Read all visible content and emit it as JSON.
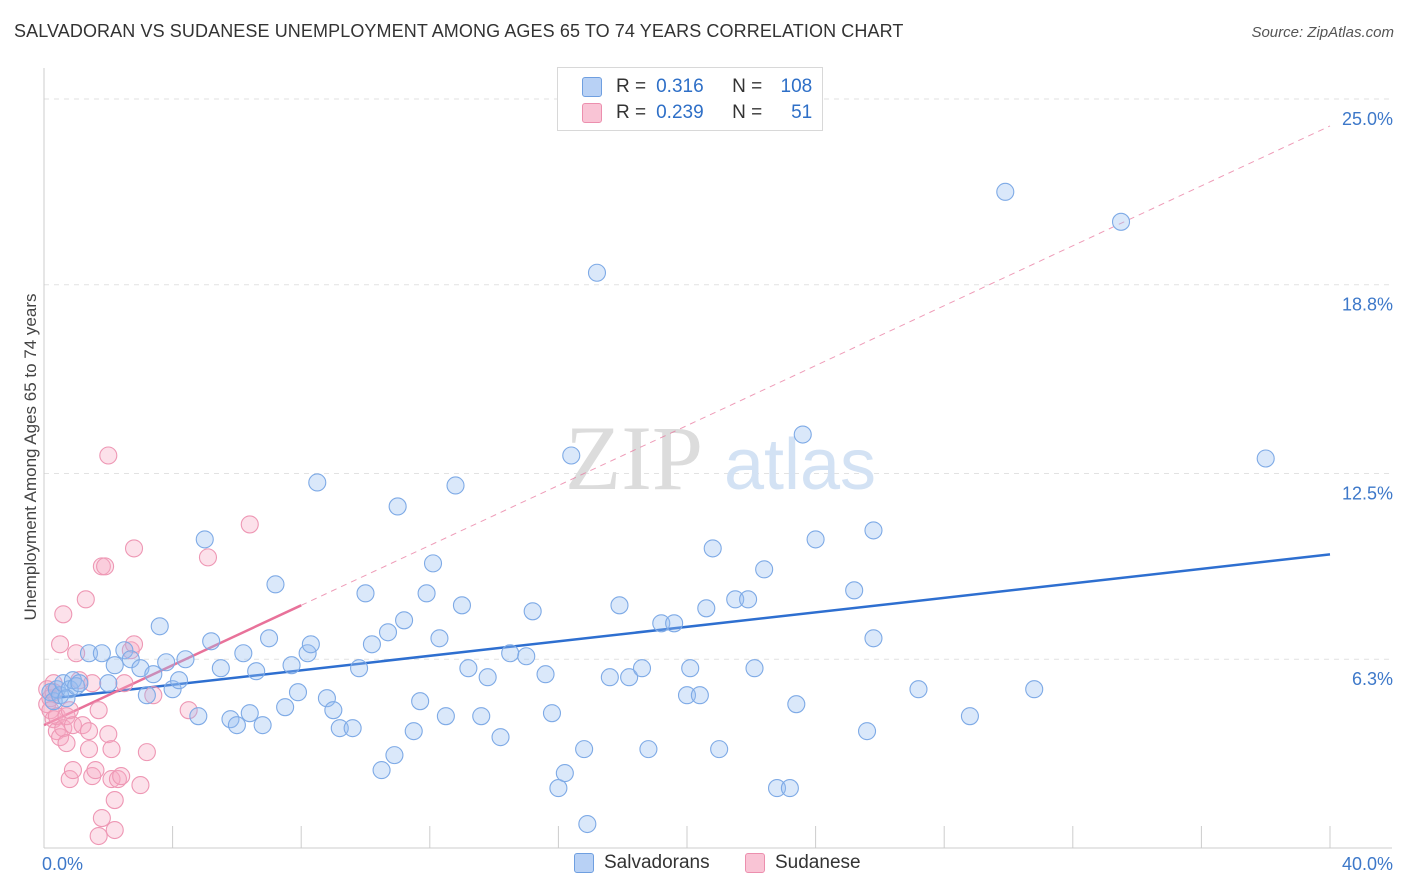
{
  "title": "SALVADORAN VS SUDANESE UNEMPLOYMENT AMONG AGES 65 TO 74 YEARS CORRELATION CHART",
  "source": "Source: ZipAtlas.com",
  "watermark": {
    "zip": "ZIP",
    "atlas": "atlas"
  },
  "legend": {
    "r_label": "R =",
    "n_label": "N =",
    "rows": [
      {
        "r": "0.316",
        "n": "108",
        "swatch_fill": "#b8d1f5",
        "swatch_stroke": "#6f9fe0"
      },
      {
        "r": "0.239",
        "n": "51",
        "swatch_fill": "#f9c4d5",
        "swatch_stroke": "#ec8fae"
      }
    ]
  },
  "series_legend": [
    {
      "name": "Salvadorans",
      "fill": "#b8d1f5",
      "stroke": "#6f9fe0"
    },
    {
      "name": "Sudanese",
      "fill": "#f9c4d5",
      "stroke": "#ec8fae"
    }
  ],
  "chart_data": {
    "type": "scatter",
    "title": "SALVADORAN VS SUDANESE UNEMPLOYMENT AMONG AGES 65 TO 74 YEARS CORRELATION CHART",
    "xlabel": "",
    "ylabel": "Unemployment Among Ages 65 to 74 years",
    "xlim": [
      0,
      40
    ],
    "ylim": [
      0,
      25.7
    ],
    "x_tick_labels": [
      {
        "value": 0,
        "label": "0.0%"
      },
      {
        "value": 40,
        "label": "40.0%"
      }
    ],
    "y_tick_labels": [
      {
        "value": 6.3,
        "label": "6.3%"
      },
      {
        "value": 12.5,
        "label": "12.5%"
      },
      {
        "value": 18.8,
        "label": "18.8%"
      },
      {
        "value": 25.0,
        "label": "25.0%"
      }
    ],
    "x_minor_ticks": [
      0,
      4,
      8,
      12,
      16,
      20,
      24,
      28,
      32,
      36,
      40
    ],
    "grid_y": [
      6.3,
      12.5,
      18.8,
      25.0
    ],
    "colors": {
      "blue_line": "#2e6fd0",
      "pink_line": "#e8729a",
      "tick_text": "#3d78c9",
      "axis": "#cccccc",
      "grid": "#e2e2e2"
    },
    "series": [
      {
        "name": "Salvadorans",
        "color": "#7eaae6",
        "points": [
          [
            0.2,
            5.2
          ],
          [
            0.3,
            4.9
          ],
          [
            0.4,
            5.3
          ],
          [
            0.5,
            5.1
          ],
          [
            0.6,
            5.5
          ],
          [
            0.7,
            5.0
          ],
          [
            0.8,
            5.3
          ],
          [
            0.9,
            5.6
          ],
          [
            1.0,
            5.4
          ],
          [
            1.1,
            5.5
          ],
          [
            1.4,
            6.5
          ],
          [
            1.8,
            6.5
          ],
          [
            2.0,
            5.5
          ],
          [
            2.2,
            6.1
          ],
          [
            2.5,
            6.6
          ],
          [
            2.7,
            6.3
          ],
          [
            3.0,
            6.0
          ],
          [
            3.2,
            5.1
          ],
          [
            3.4,
            5.8
          ],
          [
            3.6,
            7.4
          ],
          [
            3.8,
            6.2
          ],
          [
            4.0,
            5.3
          ],
          [
            4.2,
            5.6
          ],
          [
            4.4,
            6.3
          ],
          [
            4.8,
            4.4
          ],
          [
            5.0,
            10.3
          ],
          [
            5.2,
            6.9
          ],
          [
            5.5,
            6.0
          ],
          [
            5.8,
            4.3
          ],
          [
            6.0,
            4.1
          ],
          [
            6.2,
            6.5
          ],
          [
            6.4,
            4.5
          ],
          [
            6.6,
            5.9
          ],
          [
            6.8,
            4.1
          ],
          [
            7.0,
            7.0
          ],
          [
            7.2,
            8.8
          ],
          [
            7.5,
            4.7
          ],
          [
            7.7,
            6.1
          ],
          [
            7.9,
            5.2
          ],
          [
            8.2,
            6.5
          ],
          [
            8.3,
            6.8
          ],
          [
            8.5,
            12.2
          ],
          [
            8.8,
            5.0
          ],
          [
            9.0,
            4.6
          ],
          [
            9.2,
            4.0
          ],
          [
            9.6,
            4.0
          ],
          [
            9.8,
            6.0
          ],
          [
            10.0,
            8.5
          ],
          [
            10.2,
            6.8
          ],
          [
            10.5,
            2.6
          ],
          [
            10.7,
            7.2
          ],
          [
            10.9,
            3.1
          ],
          [
            11.0,
            11.4
          ],
          [
            11.2,
            7.6
          ],
          [
            11.5,
            3.9
          ],
          [
            11.7,
            4.9
          ],
          [
            11.9,
            8.5
          ],
          [
            12.1,
            9.5
          ],
          [
            12.3,
            7.0
          ],
          [
            12.5,
            4.4
          ],
          [
            12.8,
            12.1
          ],
          [
            13.0,
            8.1
          ],
          [
            13.2,
            6.0
          ],
          [
            13.6,
            4.4
          ],
          [
            13.8,
            5.7
          ],
          [
            14.2,
            3.7
          ],
          [
            14.5,
            6.5
          ],
          [
            15.0,
            6.4
          ],
          [
            15.2,
            7.9
          ],
          [
            15.6,
            5.8
          ],
          [
            15.8,
            4.5
          ],
          [
            16.0,
            2.0
          ],
          [
            16.2,
            2.5
          ],
          [
            16.4,
            13.1
          ],
          [
            16.8,
            3.3
          ],
          [
            16.9,
            0.8
          ],
          [
            17.2,
            19.2
          ],
          [
            17.6,
            5.7
          ],
          [
            17.9,
            8.1
          ],
          [
            18.2,
            5.7
          ],
          [
            18.6,
            6.0
          ],
          [
            18.8,
            3.3
          ],
          [
            19.2,
            7.5
          ],
          [
            19.6,
            7.5
          ],
          [
            20.0,
            5.1
          ],
          [
            20.1,
            6.0
          ],
          [
            20.4,
            5.1
          ],
          [
            20.6,
            8.0
          ],
          [
            20.8,
            10.0
          ],
          [
            21.0,
            3.3
          ],
          [
            21.5,
            8.3
          ],
          [
            21.9,
            8.3
          ],
          [
            22.1,
            6.0
          ],
          [
            22.4,
            9.3
          ],
          [
            22.8,
            2.0
          ],
          [
            23.2,
            2.0
          ],
          [
            23.4,
            4.8
          ],
          [
            23.6,
            13.8
          ],
          [
            24.0,
            10.3
          ],
          [
            25.2,
            8.6
          ],
          [
            25.6,
            3.9
          ],
          [
            25.8,
            7.0
          ],
          [
            25.8,
            10.6
          ],
          [
            27.2,
            5.3
          ],
          [
            28.8,
            4.4
          ],
          [
            30.8,
            5.3
          ],
          [
            29.9,
            21.9
          ],
          [
            33.5,
            20.9
          ],
          [
            38.0,
            13.0
          ]
        ]
      },
      {
        "name": "Sudanese",
        "color": "#ee97b4",
        "points": [
          [
            0.1,
            4.8
          ],
          [
            0.1,
            5.3
          ],
          [
            0.2,
            5.0
          ],
          [
            0.2,
            4.6
          ],
          [
            0.3,
            4.3
          ],
          [
            0.3,
            5.5
          ],
          [
            0.4,
            3.9
          ],
          [
            0.4,
            4.4
          ],
          [
            0.5,
            3.7
          ],
          [
            0.5,
            6.8
          ],
          [
            0.6,
            7.8
          ],
          [
            0.6,
            4.0
          ],
          [
            0.7,
            4.4
          ],
          [
            0.7,
            3.5
          ],
          [
            0.8,
            4.6
          ],
          [
            0.8,
            2.3
          ],
          [
            0.9,
            4.1
          ],
          [
            0.9,
            2.6
          ],
          [
            1.0,
            6.5
          ],
          [
            1.1,
            5.6
          ],
          [
            1.2,
            4.1
          ],
          [
            1.3,
            8.3
          ],
          [
            1.4,
            3.9
          ],
          [
            1.4,
            3.3
          ],
          [
            1.5,
            2.4
          ],
          [
            1.5,
            5.5
          ],
          [
            1.6,
            2.6
          ],
          [
            1.7,
            4.6
          ],
          [
            1.7,
            0.4
          ],
          [
            1.8,
            1.0
          ],
          [
            1.8,
            9.4
          ],
          [
            1.9,
            9.4
          ],
          [
            2.0,
            3.8
          ],
          [
            2.0,
            13.1
          ],
          [
            2.1,
            3.3
          ],
          [
            2.1,
            2.3
          ],
          [
            2.2,
            0.6
          ],
          [
            2.2,
            1.6
          ],
          [
            2.3,
            2.3
          ],
          [
            2.4,
            2.4
          ],
          [
            2.5,
            5.5
          ],
          [
            2.7,
            6.6
          ],
          [
            2.8,
            6.8
          ],
          [
            2.8,
            10.0
          ],
          [
            3.0,
            2.1
          ],
          [
            3.2,
            3.2
          ],
          [
            3.4,
            5.1
          ],
          [
            4.5,
            4.6
          ],
          [
            5.1,
            9.7
          ],
          [
            6.4,
            10.8
          ],
          [
            0.3,
            5.2
          ]
        ]
      }
    ],
    "trendlines": [
      {
        "series": "Salvadorans",
        "x": [
          0.3,
          40
        ],
        "y": [
          5.0,
          9.8
        ],
        "style": "solid"
      },
      {
        "series": "Sudanese",
        "x": [
          0.0,
          8.0
        ],
        "y": [
          4.1,
          8.1
        ],
        "style": "solid"
      },
      {
        "series": "Sudanese",
        "x": [
          8.0,
          40
        ],
        "y": [
          8.1,
          24.1
        ],
        "style": "dashed"
      }
    ]
  }
}
